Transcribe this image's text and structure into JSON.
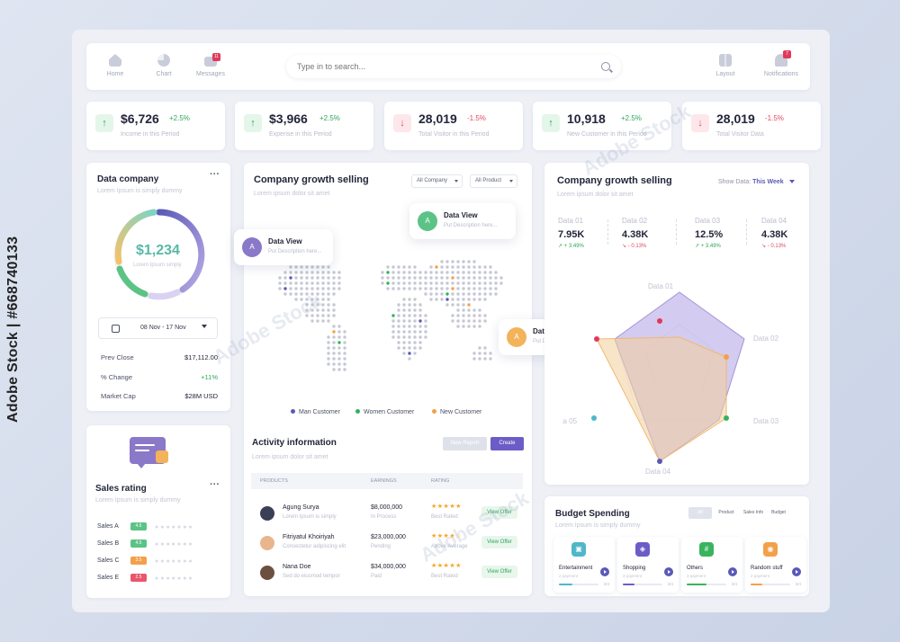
{
  "watermark": {
    "side_text": "Adobe Stock | #668740133",
    "brand": "Adobe Stock"
  },
  "nav": {
    "items": [
      {
        "label": "Home",
        "icon": "home-icon"
      },
      {
        "label": "Chart",
        "icon": "pie-chart-icon"
      },
      {
        "label": "Messages",
        "icon": "mail-icon",
        "badge": "11"
      }
    ],
    "search_placeholder": "Type in to search...",
    "right": [
      {
        "label": "Layout",
        "icon": "layout-icon"
      },
      {
        "label": "Notifications",
        "icon": "bell-icon",
        "badge": "7"
      }
    ]
  },
  "stats": [
    {
      "value": "$6,726",
      "change": "+2.5%",
      "label": "Income in this Period",
      "dir": "up"
    },
    {
      "value": "$3,966",
      "change": "+2.5%",
      "label": "Expense in this Period",
      "dir": "up"
    },
    {
      "value": "28,019",
      "change": "-1.5%",
      "label": "Total Visitor in this Period",
      "dir": "down"
    },
    {
      "value": "10,918",
      "change": "+2.5%",
      "label": "New Customer in this Period",
      "dir": "up"
    },
    {
      "value": "28,019",
      "change": "-1.5%",
      "label": "Total Visitor Data",
      "dir": "down"
    }
  ],
  "data_company": {
    "title": "Data company",
    "subtitle": "Lorem Ipsum is simply dummy",
    "amount": "$1,234",
    "amount_sub": "Lorem Ipsum simply",
    "date_range": "08 Nov - 17 Nov",
    "rows": [
      {
        "label": "Prev Close",
        "value": "$17,112.00"
      },
      {
        "label": "% Change",
        "value": "+11%"
      },
      {
        "label": "Market Cap",
        "value": "$28M USD"
      }
    ]
  },
  "sales_rating": {
    "title": "Sales rating",
    "subtitle": "Lorem Ipsum is simply dummy",
    "rows": [
      {
        "label": "Sales A",
        "score": "4.5",
        "color": "#5cc386"
      },
      {
        "label": "Sales B",
        "score": "4.5",
        "color": "#5cc386"
      },
      {
        "label": "Sales C",
        "score": "3.5",
        "color": "#f3a04a"
      },
      {
        "label": "Sales E",
        "score": "2.5",
        "color": "#e9566b"
      }
    ]
  },
  "map_card": {
    "title": "Company growth selling",
    "subtitle": "Lorem ipsum dolor sit amet",
    "filter1": "All Company",
    "filter2": "All Product",
    "tooltips": [
      {
        "initial": "A",
        "title": "Data View",
        "desc": "Put Description here...",
        "color": "#8a78c8"
      },
      {
        "initial": "A",
        "title": "Data View",
        "desc": "Put Description here...",
        "color": "#5cc386"
      },
      {
        "initial": "A",
        "title": "Data View",
        "desc": "Put Description here...",
        "color": "#f3b35a"
      }
    ],
    "legend": [
      {
        "label": "Man Customer",
        "color": "#5b59b7"
      },
      {
        "label": "Women Customer",
        "color": "#36b15b"
      },
      {
        "label": "New Customer",
        "color": "#f3a04a"
      }
    ]
  },
  "activity": {
    "title": "Activity information",
    "subtitle": "Lorem ipsum dolor sit amet",
    "new_report": "New Report",
    "create": "Create",
    "headers": [
      "PRODUCTS",
      "EARNINGS",
      "RATING"
    ],
    "rows": [
      {
        "name": "Agung Surya",
        "desc": "Lorem Ipsum is simply",
        "earn": "$8,000,000",
        "status": "In Process",
        "stars": "★★★★★",
        "rating": "Best Rated",
        "action": "View Offer",
        "avatar": "#3a3f56"
      },
      {
        "name": "Fitriyatul Khoiriyah",
        "desc": "Consectetur adipiscing elit",
        "earn": "$23,000,000",
        "status": "Pending",
        "stars": "★★★★☆",
        "rating": "Above Average",
        "action": "View Offer",
        "avatar": "#e8b58c"
      },
      {
        "name": "Nana Doe",
        "desc": "Sed do eiusmod tempor",
        "earn": "$34,000,000",
        "status": "Paid",
        "stars": "★★★★★",
        "rating": "Best Rated",
        "action": "View Offer",
        "avatar": "#6b4f3f"
      }
    ]
  },
  "radar_card": {
    "title": "Company growth selling",
    "subtitle": "Lorem ipsum dolor sit amet",
    "show_label": "Show Data:",
    "show_value": "This Week",
    "metrics": [
      {
        "head": "Data 01",
        "value": "7.95K",
        "change": "+ 3.49%",
        "dir": "up"
      },
      {
        "head": "Data 02",
        "value": "4.38K",
        "change": "- 0.13%",
        "dir": "down"
      },
      {
        "head": "Data 03",
        "value": "12.5%",
        "change": "+ 3.49%",
        "dir": "up"
      },
      {
        "head": "Data 04",
        "value": "4.38K",
        "change": "- 0.13%",
        "dir": "down"
      }
    ],
    "axes": [
      "Data 01",
      "Data 02",
      "Data 03",
      "Data 04",
      "Data 05"
    ]
  },
  "budget": {
    "title": "Budget Spending",
    "subtitle": "Lorem Ipsum is simply dummy",
    "tabs": [
      "All",
      "Product",
      "Sales Info",
      "Budget"
    ],
    "cards": [
      {
        "name": "Entertainment",
        "payments": "2 payment",
        "pct": "3/4",
        "color": "#4fb7c9",
        "fill": 0.35,
        "glyph": "▣"
      },
      {
        "name": "Shopping",
        "payments": "3 payment",
        "pct": "3/4",
        "color": "#6c5cc7",
        "fill": 0.3,
        "glyph": "◈"
      },
      {
        "name": "Others",
        "payments": "3 payment",
        "pct": "3/4",
        "color": "#3ab35f",
        "fill": 0.5,
        "glyph": "#"
      },
      {
        "name": "Random stuff",
        "payments": "2 payment",
        "pct": "3/4",
        "color": "#f3a04a",
        "fill": 0.3,
        "glyph": "◉"
      }
    ]
  }
}
